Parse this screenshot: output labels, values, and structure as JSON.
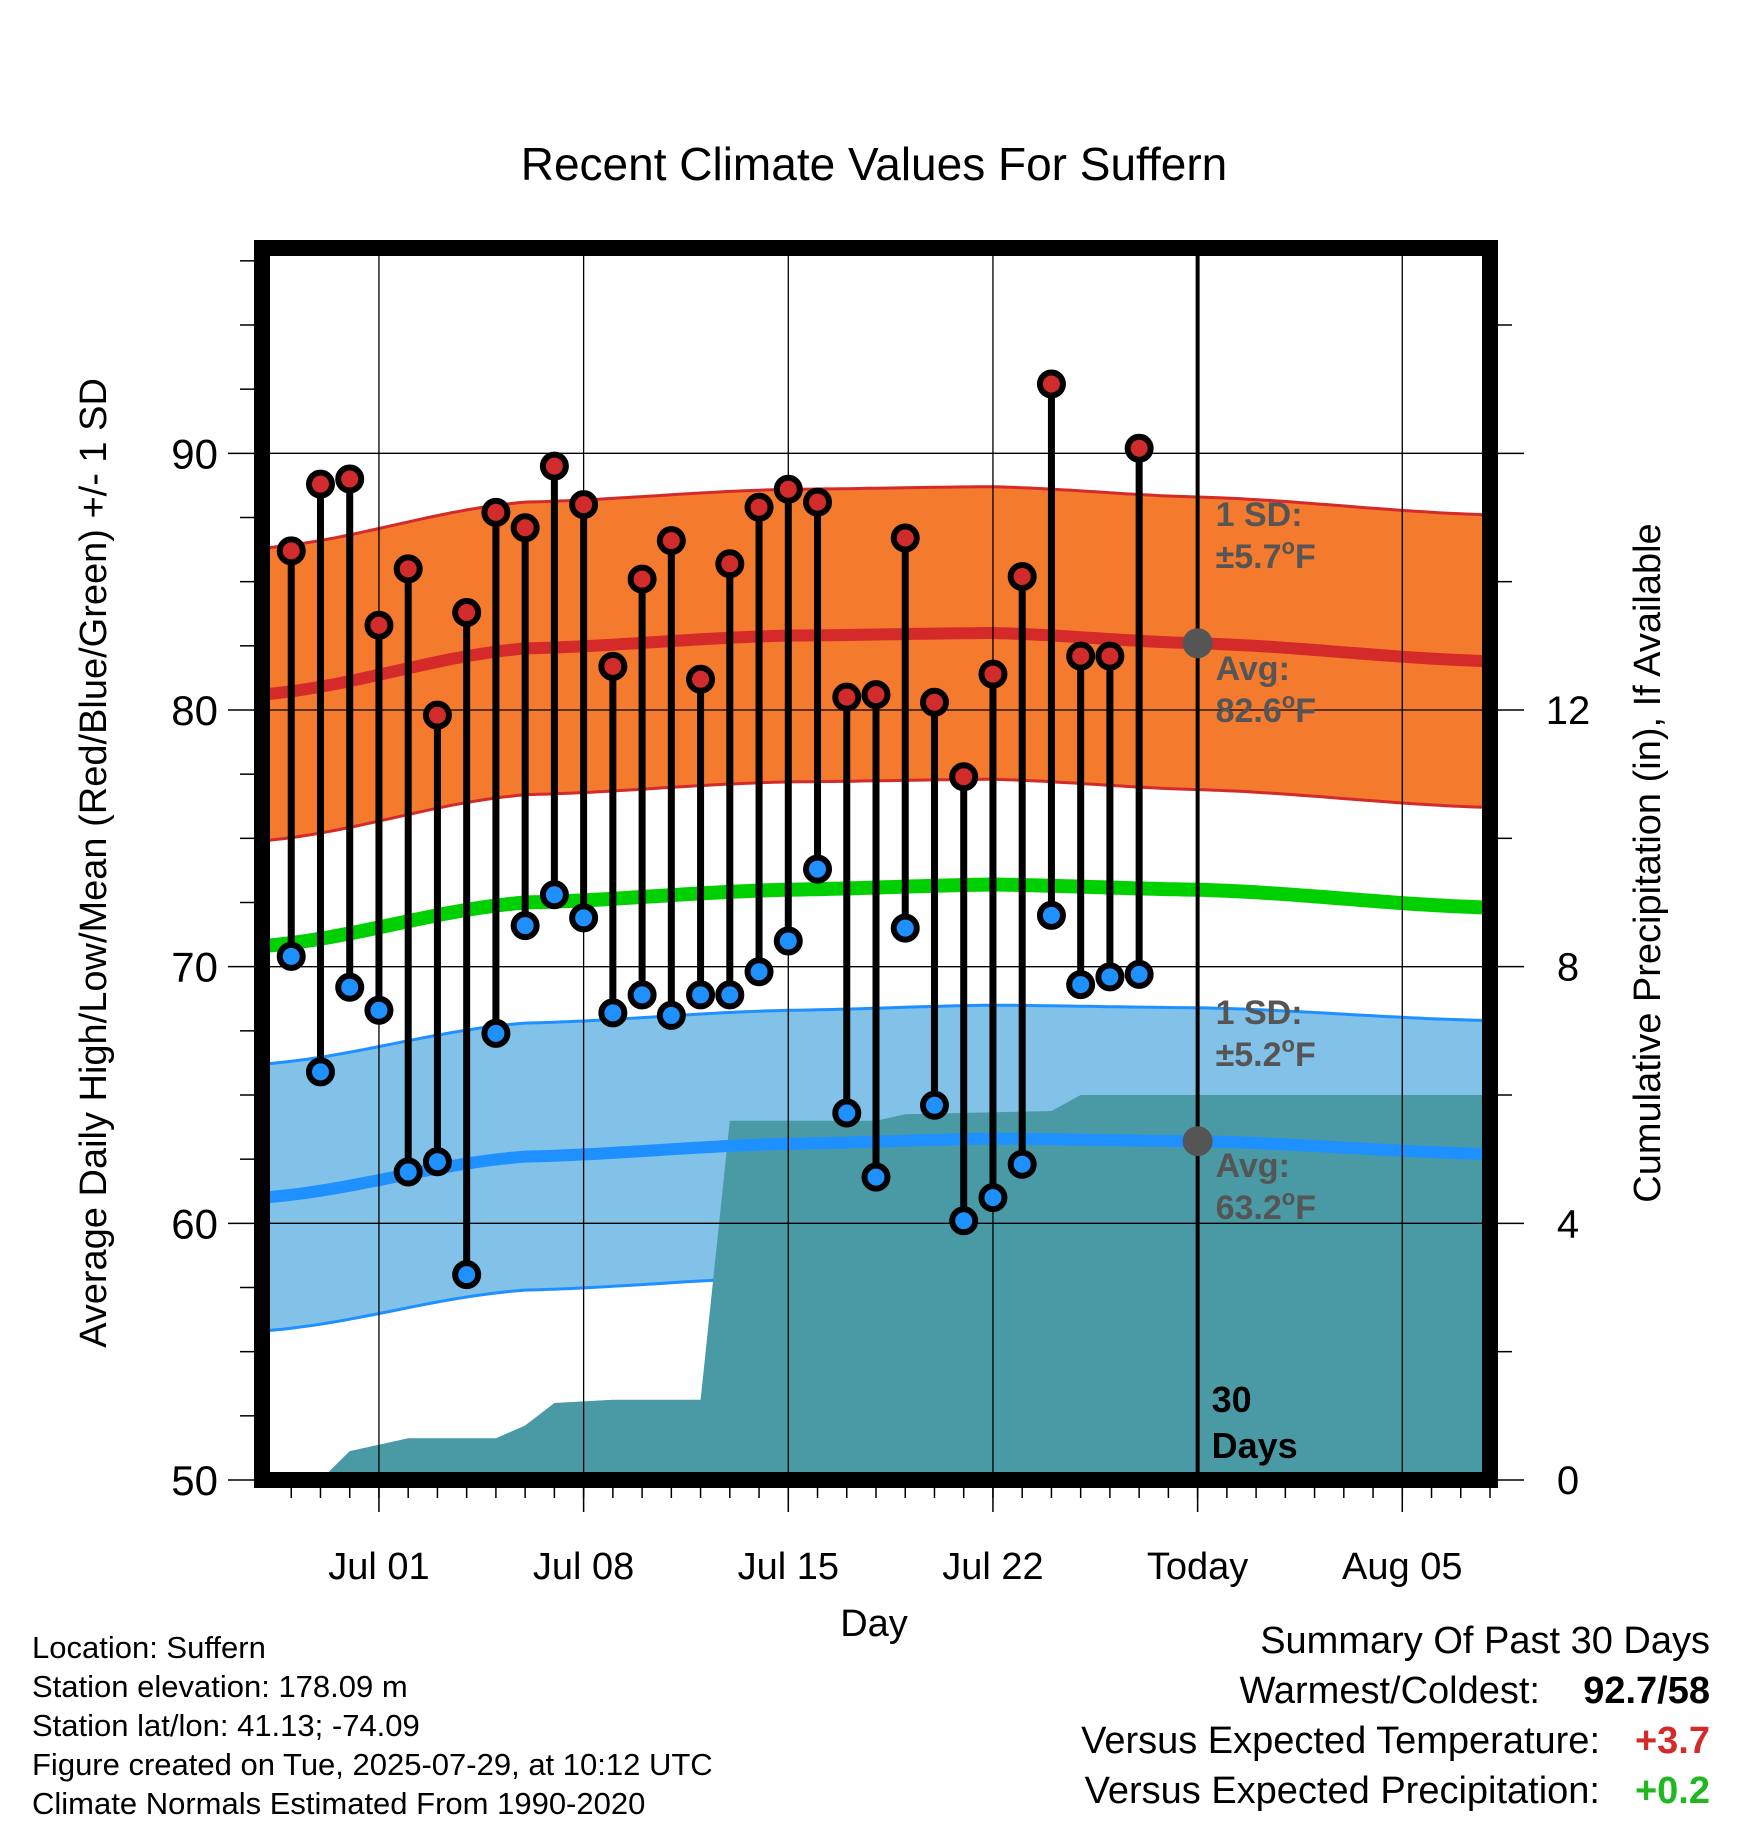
{
  "chart_data": {
    "type": "climate-range",
    "title": "Recent Climate Values For Suffern",
    "xlabel": "Day",
    "ylabel_left": "Average Daily High/Low/Mean (Red/Blue/Green) +/- 1 SD",
    "ylabel_right": "Cumulative Precipitation (in), If Available",
    "ylim_left": [
      50,
      98
    ],
    "ylim_right": [
      0,
      19.2
    ],
    "left_ticks": [
      "50",
      "60",
      "70",
      "80",
      "90"
    ],
    "right_ticks": [
      "0",
      "4",
      "8",
      "12"
    ],
    "x_range": [
      "2025-06-27",
      "2025-08-08"
    ],
    "x_tick_labels": [
      {
        "date": "2025-07-01",
        "label": "Jul 01"
      },
      {
        "date": "2025-07-08",
        "label": "Jul 08"
      },
      {
        "date": "2025-07-15",
        "label": "Jul 15"
      },
      {
        "date": "2025-07-22",
        "label": "Jul 22"
      },
      {
        "date": "2025-07-29",
        "label": "Today"
      },
      {
        "date": "2025-08-05",
        "label": "Aug 05"
      }
    ],
    "today": "2025-07-29",
    "daily": [
      {
        "date": "2025-06-28",
        "high": 86.2,
        "low": 70.4
      },
      {
        "date": "2025-06-29",
        "high": 88.8,
        "low": 65.9
      },
      {
        "date": "2025-06-30",
        "high": 89.0,
        "low": 69.2
      },
      {
        "date": "2025-07-01",
        "high": 83.3,
        "low": 68.3
      },
      {
        "date": "2025-07-02",
        "high": 85.5,
        "low": 62.0
      },
      {
        "date": "2025-07-03",
        "high": 79.8,
        "low": 62.4
      },
      {
        "date": "2025-07-04",
        "high": 83.8,
        "low": 58.0
      },
      {
        "date": "2025-07-05",
        "high": 87.7,
        "low": 67.4
      },
      {
        "date": "2025-07-06",
        "high": 87.1,
        "low": 71.6
      },
      {
        "date": "2025-07-07",
        "high": 89.5,
        "low": 72.8
      },
      {
        "date": "2025-07-08",
        "high": 88.0,
        "low": 71.9
      },
      {
        "date": "2025-07-09",
        "high": 81.7,
        "low": 68.2
      },
      {
        "date": "2025-07-10",
        "high": 85.1,
        "low": 68.9
      },
      {
        "date": "2025-07-11",
        "high": 86.6,
        "low": 68.1
      },
      {
        "date": "2025-07-12",
        "high": 81.2,
        "low": 68.9
      },
      {
        "date": "2025-07-13",
        "high": 85.7,
        "low": 68.9
      },
      {
        "date": "2025-07-14",
        "high": 87.9,
        "low": 69.8
      },
      {
        "date": "2025-07-15",
        "high": 88.6,
        "low": 71.0
      },
      {
        "date": "2025-07-16",
        "high": 88.1,
        "low": 73.8
      },
      {
        "date": "2025-07-17",
        "high": 80.5,
        "low": 64.3
      },
      {
        "date": "2025-07-18",
        "high": 80.6,
        "low": 61.8
      },
      {
        "date": "2025-07-19",
        "high": 86.7,
        "low": 71.5
      },
      {
        "date": "2025-07-20",
        "high": 80.3,
        "low": 64.6
      },
      {
        "date": "2025-07-21",
        "high": 77.4,
        "low": 60.1
      },
      {
        "date": "2025-07-22",
        "high": 81.4,
        "low": 61.0
      },
      {
        "date": "2025-07-23",
        "high": 85.2,
        "low": 62.3
      },
      {
        "date": "2025-07-24",
        "high": 92.7,
        "low": 72.0
      },
      {
        "date": "2025-07-25",
        "high": 82.1,
        "low": 69.3
      },
      {
        "date": "2025-07-26",
        "high": 82.1,
        "low": 69.6
      },
      {
        "date": "2025-07-27",
        "high": 90.2,
        "low": 69.7
      }
    ],
    "normals": {
      "dates": [
        "2025-06-27",
        "2025-07-06",
        "2025-07-15",
        "2025-07-22",
        "2025-07-29",
        "2025-08-08"
      ],
      "high_avg": [
        80.6,
        82.4,
        82.9,
        83.0,
        82.6,
        81.9
      ],
      "low_avg": [
        61.0,
        62.6,
        63.1,
        63.3,
        63.2,
        62.7
      ],
      "mean_avg": [
        70.8,
        72.5,
        73.0,
        73.2,
        73.0,
        72.3
      ]
    },
    "high_sd": 5.7,
    "low_sd": 5.2,
    "precip_cumulative": {
      "dates": [
        "2025-06-29",
        "2025-06-30",
        "2025-07-02",
        "2025-07-05",
        "2025-07-06",
        "2025-07-07",
        "2025-07-09",
        "2025-07-12",
        "2025-07-13",
        "2025-07-18",
        "2025-07-19",
        "2025-07-24",
        "2025-07-25",
        "2025-08-08"
      ],
      "values": [
        0.0,
        0.45,
        0.65,
        0.65,
        0.85,
        1.2,
        1.25,
        1.25,
        5.6,
        5.6,
        5.7,
        5.75,
        6.0,
        6.0
      ]
    },
    "annotations": {
      "high_sd_label": "1 SD:",
      "high_sd_value": "±5.7",
      "high_avg_label": "Avg:",
      "high_avg_value": "82.6",
      "low_sd_label": "1 SD:",
      "low_sd_value": "±5.2",
      "low_avg_label": "Avg:",
      "low_avg_value": "63.2",
      "degree_unit": "o",
      "temp_unit": "F",
      "period_count": "30",
      "period_word": "Days"
    },
    "colors": {
      "high_band": "#f47a2e",
      "high_line": "#d42a2a",
      "low_band": "#82c2e8",
      "low_line": "#1f90ff",
      "mean_line": "#00d000",
      "precip": "#4a9aa5",
      "high_marker": "#d22b2b",
      "low_marker": "#1e90ff",
      "annotation": "#555555"
    }
  },
  "info": {
    "location": "Location: Suffern",
    "elevation": "Station elevation: 178.09 m",
    "latlon": "Station lat/lon: 41.13; -74.09",
    "created": "Figure created on Tue, 2025-07-29, at 10:12 UTC",
    "normals": "Climate Normals Estimated From 1990-2020"
  },
  "summary": {
    "title": "Summary Of Past 30 Days",
    "warmest_label": "Warmest/Coldest:",
    "warmest_value": "92.7/58",
    "temp_label": "Versus Expected Temperature:",
    "temp_value": "+3.7",
    "temp_color": "#d42a2a",
    "precip_label": "Versus Expected Precipitation:",
    "precip_value": "+0.2",
    "precip_color": "#1fb81f"
  }
}
